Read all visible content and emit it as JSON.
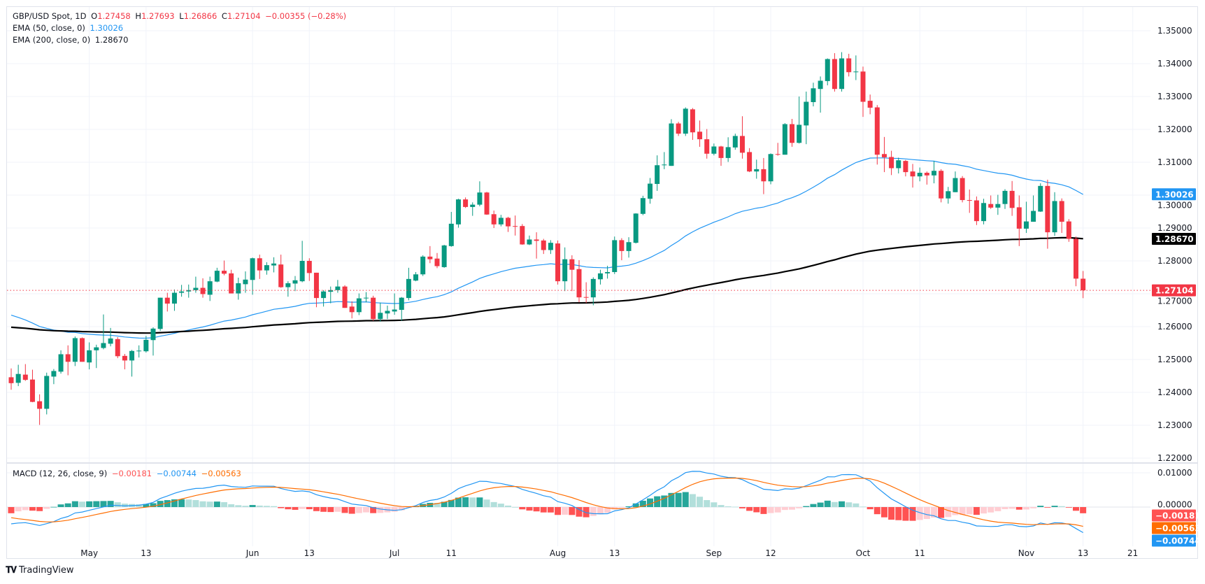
{
  "legend": {
    "symbol": "GBP/USD Spot, 1D",
    "open_label": "O",
    "open": "1.27458",
    "high_label": "H",
    "high": "1.27693",
    "low_label": "L",
    "low": "1.26866",
    "close_label": "C",
    "close": "1.27104",
    "change": "−0.00355 (−0.28%)",
    "ema50_label": "EMA (50, close, 0)",
    "ema50_value": "1.30026",
    "ema200_label": "EMA (200, close, 0)",
    "ema200_value": "1.28670",
    "macd_label": "MACD (12, 26, close, 9)",
    "macd_hist": "−0.00181",
    "macd_line": "−0.00744",
    "macd_signal": "−0.00563"
  },
  "price_tags": {
    "ema50": "1.30026",
    "ema200": "1.28670",
    "last": "1.27104"
  },
  "macd_tags": {
    "hist": "−0.00181",
    "signal": "−0.00563",
    "macd": "−0.00744"
  },
  "brand": "TradingView",
  "colors": {
    "up": "#089981",
    "down": "#F23645",
    "ema50": "#2196F3",
    "ema200": "#000000",
    "macd": "#2196F3",
    "signal": "#FF6D00",
    "hist_up_strong": "#26A69A",
    "hist_up_weak": "#B2DFDB",
    "hist_down_strong": "#FF5252",
    "hist_down_weak": "#FFCDD2"
  },
  "chart_data": {
    "type": "candlestick",
    "title": "GBP/USD Spot, 1D",
    "price_ticks": [
      "1.35000",
      "1.34000",
      "1.33000",
      "1.32000",
      "1.31000",
      "1.30000",
      "1.29000",
      "1.28000",
      "1.27000",
      "1.26000",
      "1.25000",
      "1.24000",
      "1.23000",
      "1.22000"
    ],
    "ylim": [
      1.22,
      1.35
    ],
    "macd_ticks": [
      "0.01000",
      "0.00000"
    ],
    "time_ticks": [
      {
        "label": "May",
        "date": "May 1"
      },
      {
        "label": "13",
        "date": "May 13"
      },
      {
        "label": "Jun",
        "date": "Jun 3"
      },
      {
        "label": "13",
        "date": "Jun 13"
      },
      {
        "label": "Jul",
        "date": "Jul 1"
      },
      {
        "label": "11",
        "date": "Jul 11"
      },
      {
        "label": "Aug",
        "date": "Aug 1"
      },
      {
        "label": "13",
        "date": "Aug 13"
      },
      {
        "label": "Sep",
        "date": "Sep 2"
      },
      {
        "label": "12",
        "date": "Sep 12"
      },
      {
        "label": "Oct",
        "date": "Oct 1"
      },
      {
        "label": "11",
        "date": "Oct 11"
      },
      {
        "label": "Nov",
        "date": "Nov 1"
      },
      {
        "label": "13",
        "date": "Nov 13"
      },
      {
        "label": "21",
        "date": "Nov 21"
      }
    ],
    "grid": true,
    "indicators": [
      "EMA 50",
      "EMA 200",
      "MACD (12, 26, 9)"
    ],
    "candles_columns": [
      "date",
      "open",
      "high",
      "low",
      "close"
    ],
    "candles": [
      [
        "Apr 16",
        1.2446,
        1.2473,
        1.2408,
        1.2428
      ],
      [
        "Apr 17",
        1.2429,
        1.2484,
        1.2419,
        1.2456
      ],
      [
        "Apr 18",
        1.2454,
        1.2486,
        1.2435,
        1.2438
      ],
      [
        "Apr 19",
        1.2439,
        1.2469,
        1.237,
        1.2371
      ],
      [
        "Apr 22",
        1.2373,
        1.2394,
        1.2301,
        1.235
      ],
      [
        "Apr 23",
        1.235,
        1.246,
        1.2333,
        1.245
      ],
      [
        "Apr 24",
        1.2448,
        1.2471,
        1.2425,
        1.2465
      ],
      [
        "Apr 25",
        1.2463,
        1.2528,
        1.2457,
        1.2516
      ],
      [
        "Apr 26",
        1.2516,
        1.2543,
        1.2452,
        1.2493
      ],
      [
        "Apr 29",
        1.2493,
        1.257,
        1.248,
        1.2565
      ],
      [
        "Apr 30",
        1.2565,
        1.2567,
        1.2493,
        1.2493
      ],
      [
        "May 1",
        1.2491,
        1.2552,
        1.247,
        1.2528
      ],
      [
        "May 2",
        1.2528,
        1.2545,
        1.2474,
        1.2537
      ],
      [
        "May 3",
        1.2535,
        1.2637,
        1.2531,
        1.255
      ],
      [
        "May 6",
        1.2548,
        1.2596,
        1.254,
        1.2564
      ],
      [
        "May 7",
        1.2562,
        1.2568,
        1.2504,
        1.251
      ],
      [
        "May 8",
        1.2511,
        1.2517,
        1.247,
        1.2497
      ],
      [
        "May 9",
        1.2497,
        1.2529,
        1.2448,
        1.2526
      ],
      [
        "May 10",
        1.2525,
        1.2543,
        1.2506,
        1.2527
      ],
      [
        "May 13",
        1.2525,
        1.2572,
        1.2521,
        1.256
      ],
      [
        "May 14",
        1.2559,
        1.2598,
        1.2512,
        1.2594
      ],
      [
        "May 15",
        1.2593,
        1.2688,
        1.2587,
        1.2688
      ],
      [
        "May 16",
        1.2688,
        1.2703,
        1.2646,
        1.267
      ],
      [
        "May 17",
        1.267,
        1.2713,
        1.2648,
        1.2703
      ],
      [
        "May 20",
        1.2703,
        1.2727,
        1.2691,
        1.2707
      ],
      [
        "May 21",
        1.2707,
        1.2728,
        1.2688,
        1.2711
      ],
      [
        "May 22",
        1.2711,
        1.2752,
        1.2703,
        1.2718
      ],
      [
        "May 23",
        1.2718,
        1.2747,
        1.2688,
        1.2699
      ],
      [
        "May 24",
        1.2697,
        1.2752,
        1.2678,
        1.2738
      ],
      [
        "May 27",
        1.2737,
        1.2779,
        1.2735,
        1.277
      ],
      [
        "May 28",
        1.277,
        1.2801,
        1.2756,
        1.2761
      ],
      [
        "May 29",
        1.2762,
        1.2773,
        1.2701,
        1.2701
      ],
      [
        "May 30",
        1.2701,
        1.2749,
        1.2682,
        1.2732
      ],
      [
        "May 31",
        1.2729,
        1.2768,
        1.2703,
        1.2743
      ],
      [
        "Jun 3",
        1.2742,
        1.281,
        1.2697,
        1.2808
      ],
      [
        "Jun 4",
        1.2808,
        1.2819,
        1.2745,
        1.2771
      ],
      [
        "Jun 5",
        1.2771,
        1.2796,
        1.2758,
        1.2787
      ],
      [
        "Jun 6",
        1.2786,
        1.2811,
        1.2765,
        1.2792
      ],
      [
        "Jun 7",
        1.2789,
        1.2819,
        1.2718,
        1.272
      ],
      [
        "Jun 10",
        1.272,
        1.2738,
        1.2691,
        1.2732
      ],
      [
        "Jun 11",
        1.2731,
        1.2754,
        1.2708,
        1.2741
      ],
      [
        "Jun 12",
        1.2738,
        1.2861,
        1.2735,
        1.28
      ],
      [
        "Jun 13",
        1.28,
        1.2808,
        1.2739,
        1.2763
      ],
      [
        "Jun 14",
        1.2764,
        1.2764,
        1.2659,
        1.2687
      ],
      [
        "Jun 17",
        1.2687,
        1.2711,
        1.2661,
        1.2707
      ],
      [
        "Jun 18",
        1.2706,
        1.2722,
        1.2671,
        1.2711
      ],
      [
        "Jun 19",
        1.2711,
        1.2742,
        1.2703,
        1.2722
      ],
      [
        "Jun 20",
        1.2722,
        1.2726,
        1.2657,
        1.2657
      ],
      [
        "Jun 21",
        1.2661,
        1.2677,
        1.2625,
        1.2644
      ],
      [
        "Jun 24",
        1.2644,
        1.2701,
        1.2635,
        1.2686
      ],
      [
        "Jun 25",
        1.2687,
        1.2705,
        1.2674,
        1.2688
      ],
      [
        "Jun 26",
        1.2688,
        1.2694,
        1.2618,
        1.2623
      ],
      [
        "Jun 27",
        1.2623,
        1.2673,
        1.2615,
        1.2642
      ],
      [
        "Jun 28",
        1.264,
        1.2664,
        1.2623,
        1.2648
      ],
      [
        "Jul 1",
        1.2646,
        1.2701,
        1.2636,
        1.2652
      ],
      [
        "Jul 2",
        1.2651,
        1.269,
        1.2618,
        1.2688
      ],
      [
        "Jul 3",
        1.2687,
        1.2779,
        1.268,
        1.2745
      ],
      [
        "Jul 4",
        1.274,
        1.2766,
        1.2738,
        1.2759
      ],
      [
        "Jul 5",
        1.2759,
        1.2817,
        1.2754,
        1.2813
      ],
      [
        "Jul 8",
        1.2813,
        1.2845,
        1.2793,
        1.2805
      ],
      [
        "Jul 9",
        1.2807,
        1.2824,
        1.2778,
        1.2784
      ],
      [
        "Jul 10",
        1.2781,
        1.2849,
        1.2779,
        1.2847
      ],
      [
        "Jul 11",
        1.2845,
        1.2949,
        1.2843,
        1.2913
      ],
      [
        "Jul 12",
        1.2911,
        1.2989,
        1.2901,
        1.2987
      ],
      [
        "Jul 15",
        1.2987,
        1.2993,
        1.2961,
        1.2964
      ],
      [
        "Jul 16",
        1.2964,
        1.2978,
        1.2937,
        1.2971
      ],
      [
        "Jul 17",
        1.2971,
        1.3042,
        1.2966,
        1.3008
      ],
      [
        "Jul 18",
        1.3008,
        1.301,
        1.294,
        1.2941
      ],
      [
        "Jul 19",
        1.2942,
        1.2953,
        1.29,
        1.2911
      ],
      [
        "Jul 22",
        1.2911,
        1.294,
        1.2905,
        1.2931
      ],
      [
        "Jul 23",
        1.2931,
        1.2934,
        1.2888,
        1.2905
      ],
      [
        "Jul 24",
        1.2906,
        1.2938,
        1.2877,
        1.2905
      ],
      [
        "Jul 25",
        1.2906,
        1.2912,
        1.2849,
        1.285
      ],
      [
        "Jul 26",
        1.285,
        1.2877,
        1.2848,
        1.2865
      ],
      [
        "Jul 29",
        1.2865,
        1.2887,
        1.2807,
        1.2861
      ],
      [
        "Jul 30",
        1.2862,
        1.2867,
        1.2821,
        1.2833
      ],
      [
        "Jul 31",
        1.2833,
        1.2863,
        1.2821,
        1.2855
      ],
      [
        "Aug 1",
        1.2853,
        1.2862,
        1.2728,
        1.2738
      ],
      [
        "Aug 2",
        1.2738,
        1.2841,
        1.2708,
        1.2805
      ],
      [
        "Aug 5",
        1.2805,
        1.2817,
        1.2708,
        1.2773
      ],
      [
        "Aug 6",
        1.2775,
        1.2802,
        1.2674,
        1.2689
      ],
      [
        "Aug 7",
        1.269,
        1.2735,
        1.2672,
        1.2689
      ],
      [
        "Aug 8",
        1.2689,
        1.275,
        1.2665,
        1.2745
      ],
      [
        "Aug 9",
        1.2744,
        1.2773,
        1.2728,
        1.2762
      ],
      [
        "Aug 12",
        1.2762,
        1.2785,
        1.2746,
        1.2766
      ],
      [
        "Aug 13",
        1.2766,
        1.2874,
        1.276,
        1.2863
      ],
      [
        "Aug 14",
        1.2863,
        1.2869,
        1.2802,
        1.283
      ],
      [
        "Aug 15",
        1.283,
        1.2872,
        1.281,
        1.2857
      ],
      [
        "Aug 16",
        1.2855,
        1.2945,
        1.2853,
        1.2944
      ],
      [
        "Aug 19",
        1.2943,
        1.2998,
        1.2939,
        1.2991
      ],
      [
        "Aug 20",
        1.2989,
        1.3052,
        1.2974,
        1.3035
      ],
      [
        "Aug 21",
        1.3034,
        1.3121,
        1.3013,
        1.3091
      ],
      [
        "Aug 22",
        1.3091,
        1.3131,
        1.3079,
        1.3093
      ],
      [
        "Aug 23",
        1.3089,
        1.3231,
        1.3089,
        1.3218
      ],
      [
        "Aug 26",
        1.3218,
        1.3223,
        1.318,
        1.3187
      ],
      [
        "Aug 27",
        1.3187,
        1.3267,
        1.318,
        1.3263
      ],
      [
        "Aug 28",
        1.3261,
        1.3265,
        1.3168,
        1.3191
      ],
      [
        "Aug 29",
        1.3193,
        1.3227,
        1.3147,
        1.317
      ],
      [
        "Aug 30",
        1.317,
        1.3201,
        1.3111,
        1.3126
      ],
      [
        "Sep 2",
        1.3126,
        1.3157,
        1.3121,
        1.3148
      ],
      [
        "Sep 3",
        1.3148,
        1.315,
        1.3089,
        1.3113
      ],
      [
        "Sep 4",
        1.3113,
        1.3176,
        1.3101,
        1.3146
      ],
      [
        "Sep 5",
        1.3145,
        1.3187,
        1.3138,
        1.318
      ],
      [
        "Sep 6",
        1.318,
        1.324,
        1.3111,
        1.3129
      ],
      [
        "Sep 9",
        1.3131,
        1.3143,
        1.307,
        1.3072
      ],
      [
        "Sep 10",
        1.3072,
        1.3108,
        1.305,
        1.3079
      ],
      [
        "Sep 11",
        1.3079,
        1.3113,
        1.3003,
        1.3042
      ],
      [
        "Sep 12",
        1.3042,
        1.3127,
        1.3033,
        1.3125
      ],
      [
        "Sep 13",
        1.3125,
        1.3159,
        1.312,
        1.3123
      ],
      [
        "Sep 16",
        1.3123,
        1.3219,
        1.3123,
        1.3216
      ],
      [
        "Sep 17",
        1.3216,
        1.3232,
        1.3147,
        1.3159
      ],
      [
        "Sep 18",
        1.3159,
        1.33,
        1.3157,
        1.3214
      ],
      [
        "Sep 19",
        1.3212,
        1.3315,
        1.3155,
        1.3284
      ],
      [
        "Sep 20",
        1.3283,
        1.3342,
        1.327,
        1.3325
      ],
      [
        "Sep 23",
        1.3323,
        1.3361,
        1.3251,
        1.3348
      ],
      [
        "Sep 24",
        1.3347,
        1.3416,
        1.3334,
        1.3414
      ],
      [
        "Sep 25",
        1.3414,
        1.3432,
        1.3315,
        1.3323
      ],
      [
        "Sep 26",
        1.3323,
        1.3435,
        1.3315,
        1.3416
      ],
      [
        "Sep 27",
        1.3416,
        1.343,
        1.3361,
        1.3374
      ],
      [
        "Sep 30",
        1.3374,
        1.3425,
        1.335,
        1.3376
      ],
      [
        "Oct 1",
        1.3376,
        1.3391,
        1.3238,
        1.3284
      ],
      [
        "Oct 2",
        1.3287,
        1.3306,
        1.3246,
        1.3266
      ],
      [
        "Oct 3",
        1.3267,
        1.3274,
        1.3093,
        1.3123
      ],
      [
        "Oct 4",
        1.3125,
        1.3177,
        1.307,
        1.3115
      ],
      [
        "Oct 7",
        1.3116,
        1.3135,
        1.3061,
        1.3082
      ],
      [
        "Oct 8",
        1.3082,
        1.3114,
        1.3066,
        1.3106
      ],
      [
        "Oct 9",
        1.3104,
        1.3107,
        1.3057,
        1.307
      ],
      [
        "Oct 10",
        1.3072,
        1.3095,
        1.3023,
        1.3057
      ],
      [
        "Oct 11",
        1.3057,
        1.3084,
        1.3042,
        1.3068
      ],
      [
        "Oct 14",
        1.3068,
        1.3072,
        1.3032,
        1.306
      ],
      [
        "Oct 15",
        1.306,
        1.3104,
        1.3036,
        1.3074
      ],
      [
        "Oct 16",
        1.3074,
        1.3079,
        1.2978,
        1.299
      ],
      [
        "Oct 17",
        1.299,
        1.3025,
        1.2974,
        1.3012
      ],
      [
        "Oct 18",
        1.3009,
        1.3072,
        1.3009,
        1.3052
      ],
      [
        "Oct 21",
        1.3052,
        1.3058,
        1.2978,
        1.2985
      ],
      [
        "Oct 22",
        1.2985,
        1.3017,
        1.2946,
        1.2984
      ],
      [
        "Oct 23",
        1.2984,
        1.2996,
        1.2909,
        1.2921
      ],
      [
        "Oct 24",
        1.2921,
        1.2989,
        1.2911,
        1.2976
      ],
      [
        "Oct 25",
        1.2973,
        1.2999,
        1.2958,
        1.2962
      ],
      [
        "Oct 28",
        1.2962,
        1.3001,
        1.294,
        1.2973
      ],
      [
        "Oct 29",
        1.2973,
        1.3018,
        1.2958,
        1.3013
      ],
      [
        "Oct 30",
        1.3013,
        1.3043,
        1.2937,
        1.2961
      ],
      [
        "Oct 31",
        1.2963,
        1.2999,
        1.2845,
        1.2898
      ],
      [
        "Nov 1",
        1.2898,
        1.298,
        1.2885,
        1.292
      ],
      [
        "Nov 4",
        1.2919,
        1.2999,
        1.2919,
        1.2952
      ],
      [
        "Nov 5",
        1.295,
        1.3036,
        1.2949,
        1.3028
      ],
      [
        "Nov 6",
        1.3028,
        1.3047,
        1.2837,
        1.2887
      ],
      [
        "Nov 7",
        1.2887,
        1.3009,
        1.2876,
        1.2982
      ],
      [
        "Nov 8",
        1.2982,
        1.299,
        1.2885,
        1.2919
      ],
      [
        "Nov 11",
        1.292,
        1.2927,
        1.2858,
        1.2867
      ],
      [
        "Nov 12",
        1.2867,
        1.2874,
        1.2723,
        1.2746
      ],
      [
        "Nov 13",
        1.27458,
        1.27693,
        1.26866,
        1.27104
      ]
    ],
    "ema50_last": 1.30026,
    "ema200_last": 1.2867,
    "macd_last": {
      "macd": -0.00744,
      "signal": -0.00563,
      "histogram": -0.00181
    }
  }
}
